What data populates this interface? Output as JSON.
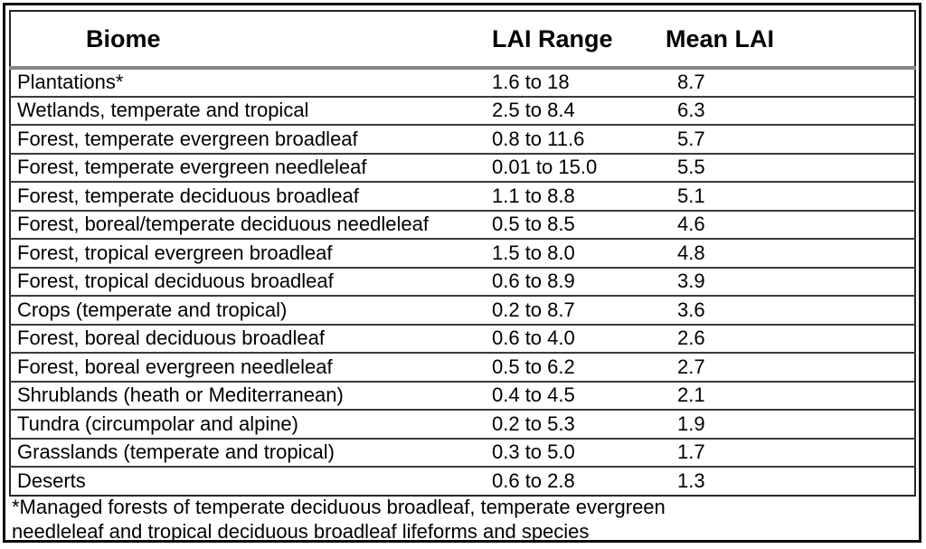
{
  "table": {
    "columns": [
      "Biome",
      "LAI Range",
      "Mean LAI"
    ],
    "rows": [
      {
        "biome": "Plantations*",
        "lai_range": "1.6 to 18",
        "mean_lai": "8.7"
      },
      {
        "biome": "Wetlands, temperate and tropical",
        "lai_range": "2.5 to 8.4",
        "mean_lai": "6.3"
      },
      {
        "biome": "Forest, temperate evergreen broadleaf",
        "lai_range": "0.8 to 11.6",
        "mean_lai": "5.7"
      },
      {
        "biome": "Forest, temperate evergreen needleleaf",
        "lai_range": "0.01 to 15.0",
        "mean_lai": "5.5"
      },
      {
        "biome": "Forest, temperate deciduous broadleaf",
        "lai_range": "1.1 to 8.8",
        "mean_lai": "5.1"
      },
      {
        "biome": "Forest, boreal/temperate deciduous needleleaf",
        "lai_range": "0.5 to 8.5",
        "mean_lai": "4.6"
      },
      {
        "biome": "Forest, tropical evergreen broadleaf",
        "lai_range": "1.5 to 8.0",
        "mean_lai": "4.8"
      },
      {
        "biome": "Forest, tropical deciduous broadleaf",
        "lai_range": "0.6 to 8.9",
        "mean_lai": "3.9"
      },
      {
        "biome": "Crops (temperate and tropical)",
        "lai_range": "0.2 to 8.7",
        "mean_lai": "3.6"
      },
      {
        "biome": "Forest, boreal deciduous broadleaf",
        "lai_range": "0.6 to 4.0",
        "mean_lai": "2.6"
      },
      {
        "biome": "Forest, boreal evergreen needleleaf",
        "lai_range": "0.5 to 6.2",
        "mean_lai": "2.7"
      },
      {
        "biome": "Shrublands (heath or Mediterranean)",
        "lai_range": "0.4 to 4.5",
        "mean_lai": "2.1"
      },
      {
        "biome": "Tundra (circumpolar and alpine)",
        "lai_range": "0.2 to 5.3",
        "mean_lai": "1.9"
      },
      {
        "biome": "Grasslands (temperate and tropical)",
        "lai_range": "0.3 to 5.0",
        "mean_lai": "1.7"
      },
      {
        "biome": "Deserts",
        "lai_range": "0.6 to 2.8",
        "mean_lai": "1.3"
      }
    ],
    "footnote_lines": [
      "*Managed forests of temperate deciduous broadleaf, temperate evergreen",
      "needleleaf and tropical deciduous broadleaf lifeforms and species"
    ]
  },
  "colors": {
    "text": "#000000",
    "background": "#ffffff",
    "frame_border": "#0b0b0b",
    "table_border": "#262626",
    "row_rule": "#3b3b3b",
    "header_rule": "#858585"
  }
}
